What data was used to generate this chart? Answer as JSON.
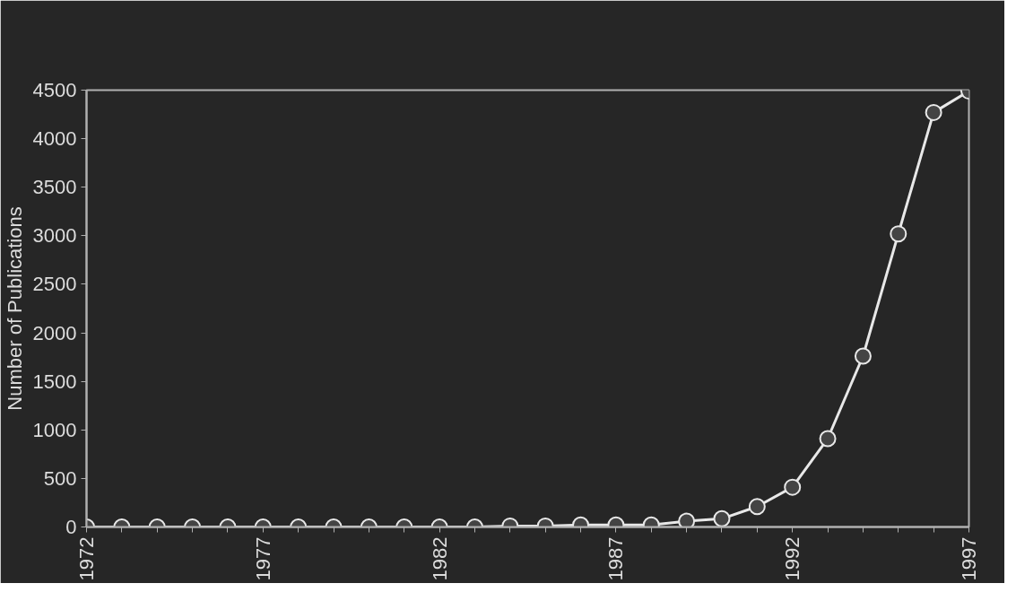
{
  "chart_data": {
    "type": "line",
    "ylabel": "Number of Publications",
    "x": [
      1972,
      1973,
      1974,
      1975,
      1976,
      1977,
      1978,
      1979,
      1980,
      1981,
      1982,
      1983,
      1984,
      1985,
      1986,
      1987,
      1988,
      1989,
      1990,
      1991,
      1992,
      1993,
      1994,
      1995,
      1996,
      1997
    ],
    "series": [
      {
        "color": "#e8e8e8",
        "values": [
          0,
          0,
          0,
          0,
          0,
          0,
          0,
          0,
          0,
          0,
          0,
          0,
          10,
          10,
          20,
          20,
          20,
          60,
          85,
          210,
          410,
          910,
          1760,
          3020,
          4270,
          4490
        ]
      }
    ],
    "xlim": [
      1972,
      1997
    ],
    "ylim": [
      0,
      4500
    ],
    "xticks": [
      1972,
      {
        "value": 1973,
        "label": null
      },
      {
        "value": 1974,
        "label": null
      },
      {
        "value": 1975,
        "label": null
      },
      {
        "value": 1976,
        "label": null
      },
      1977,
      {
        "value": 1978,
        "label": null
      },
      {
        "value": 1979,
        "label": null
      },
      {
        "value": 1980,
        "label": null
      },
      {
        "value": 1981,
        "label": null
      },
      1982,
      {
        "value": 1983,
        "label": null
      },
      {
        "value": 1984,
        "label": null
      },
      {
        "value": 1985,
        "label": null
      },
      {
        "value": 1986,
        "label": null
      },
      1987,
      {
        "value": 1988,
        "label": null
      },
      {
        "value": 1989,
        "label": null
      },
      {
        "value": 1990,
        "label": null
      },
      {
        "value": 1991,
        "label": null
      },
      1992,
      {
        "value": 1993,
        "label": null
      },
      {
        "value": 1994,
        "label": null
      },
      {
        "value": 1995,
        "label": null
      },
      {
        "value": 1996,
        "label": null
      },
      1997
    ],
    "yticks": [
      0,
      500,
      1000,
      1500,
      2000,
      2500,
      3000,
      3500,
      4000,
      4500
    ],
    "grid": false,
    "marker": "circle",
    "line_style": "solid"
  }
}
